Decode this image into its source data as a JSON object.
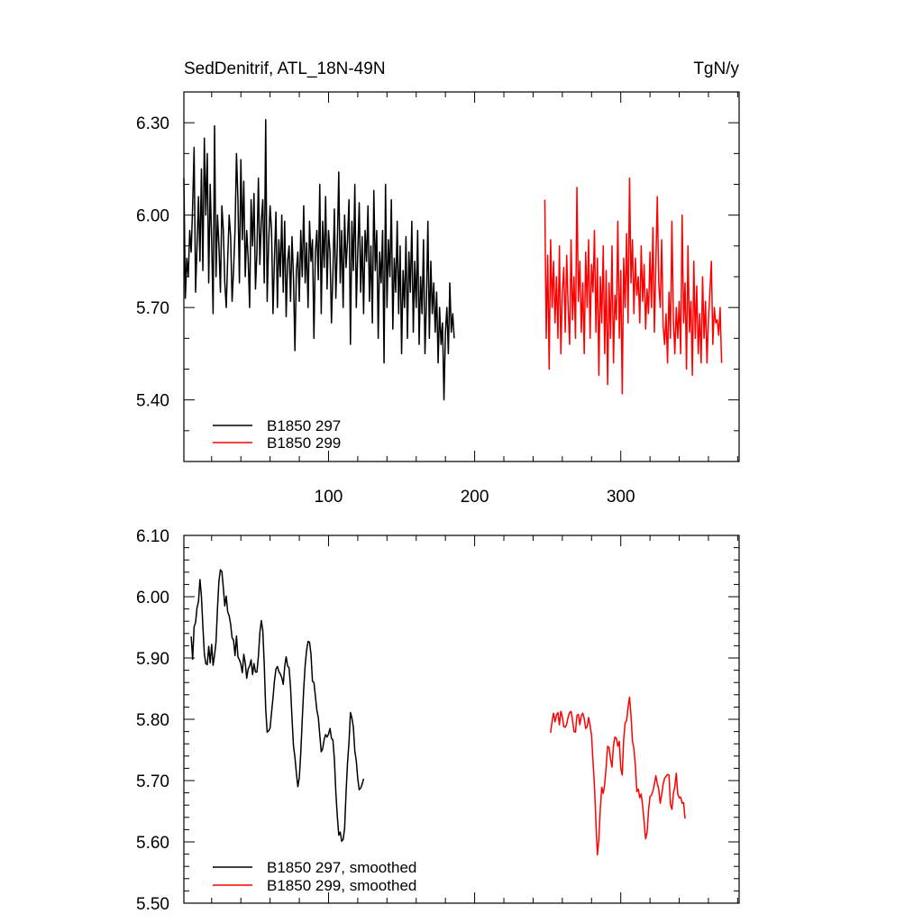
{
  "colors": {
    "run_297": "#000000",
    "run_299": "#ff0000",
    "axis": "#000000",
    "background": "#ffffff"
  },
  "chart_data": [
    {
      "type": "line",
      "title": "SedDenitrif, ATL_18N-49N",
      "units": "TgN/y",
      "xlabel": "",
      "ylabel": "",
      "xlim": [
        1,
        381
      ],
      "ylim": [
        5.2,
        6.4
      ],
      "yticks": [
        "6.30",
        "6.00",
        "5.70",
        "5.40"
      ],
      "xticks": [
        "100",
        "200",
        "300"
      ],
      "legend": [
        "B1850 297",
        "B1850 299"
      ],
      "legend_position": "bottom-left",
      "series": [
        {
          "name": "B1850 297",
          "color": "#000000",
          "x_start": 1,
          "values": [
            6.12,
            5.73,
            5.86,
            5.8,
            5.95,
            5.88,
            6.03,
            6.22,
            5.75,
            5.9,
            6.06,
            5.85,
            6.15,
            5.82,
            6.25,
            6.0,
            6.2,
            5.78,
            6.1,
            5.92,
            5.68,
            6.29,
            5.8,
            6.0,
            5.9,
            5.75,
            6.03,
            5.95,
            5.78,
            5.7,
            5.86,
            6.0,
            5.93,
            5.72,
            5.82,
            5.95,
            6.2,
            6.05,
            5.78,
            6.18,
            5.92,
            6.11,
            5.8,
            5.95,
            5.86,
            5.7,
            6.05,
            5.9,
            6.07,
            5.76,
            5.88,
            6.12,
            5.84,
            5.98,
            6.05,
            5.78,
            6.31,
            5.72,
            5.91,
            6.03,
            5.95,
            5.68,
            5.86,
            6.01,
            5.7,
            5.92,
            5.8,
            6.0,
            5.75,
            5.98,
            5.67,
            5.85,
            5.9,
            5.72,
            5.93,
            5.8,
            5.56,
            5.82,
            5.88,
            5.72,
            5.95,
            5.8,
            6.03,
            5.78,
            5.91,
            5.7,
            5.98,
            5.85,
            5.92,
            5.6,
            5.88,
            5.95,
            5.79,
            6.1,
            5.68,
            5.98,
            5.83,
            6.06,
            5.76,
            5.95,
            5.88,
            5.65,
            5.81,
            6.02,
            5.73,
            5.9,
            6.14,
            5.78,
            5.95,
            5.7,
            6.0,
            5.83,
            5.92,
            6.05,
            5.58,
            5.98,
            5.82,
            6.1,
            5.7,
            5.88,
            6.04,
            5.75,
            5.93,
            5.68,
            5.95,
            5.85,
            6.03,
            5.72,
            5.9,
            5.65,
            6.08,
            5.82,
            5.95,
            5.6,
            5.88,
            5.78,
            5.95,
            5.52,
            6.1,
            5.7,
            5.92,
            5.8,
            6.05,
            5.63,
            5.86,
            5.75,
            5.98,
            5.68,
            5.9,
            5.55,
            5.82,
            5.7,
            5.93,
            5.6,
            5.88,
            5.75,
            5.98,
            5.62,
            5.85,
            5.7,
            5.95,
            5.58,
            5.8,
            5.68,
            5.92,
            5.55,
            5.72,
            5.98,
            5.6,
            5.85,
            5.68,
            5.78,
            5.62,
            5.75,
            5.52,
            5.7,
            5.58,
            5.65,
            5.4,
            5.62,
            5.7,
            5.55,
            5.78,
            5.62,
            5.68,
            5.6
          ]
        },
        {
          "name": "B1850 299",
          "color": "#ff0000",
          "x_start": 248,
          "values": [
            6.05,
            5.6,
            5.87,
            5.5,
            5.92,
            5.7,
            5.85,
            5.65,
            5.8,
            5.6,
            5.9,
            5.55,
            5.75,
            5.83,
            5.62,
            5.87,
            5.7,
            5.58,
            5.92,
            5.66,
            5.8,
            5.6,
            6.09,
            5.72,
            5.85,
            5.62,
            5.78,
            5.55,
            5.88,
            5.7,
            5.92,
            5.6,
            5.84,
            5.75,
            5.95,
            5.62,
            5.86,
            5.48,
            5.8,
            5.65,
            5.9,
            5.55,
            5.82,
            5.45,
            5.78,
            5.6,
            5.9,
            5.52,
            5.74,
            5.66,
            5.98,
            5.6,
            5.82,
            5.42,
            5.86,
            5.7,
            5.94,
            5.65,
            6.12,
            5.78,
            5.92,
            5.68,
            5.86,
            5.74,
            5.8,
            5.65,
            5.9,
            5.72,
            5.84,
            5.63,
            5.76,
            5.68,
            5.88,
            5.7,
            5.96,
            5.62,
            5.84,
            6.06,
            5.78,
            5.7,
            5.92,
            5.64,
            5.58,
            5.68,
            5.52,
            5.75,
            5.6,
            5.98,
            5.66,
            5.55,
            5.7,
            5.6,
            5.72,
            5.55,
            6.0,
            5.65,
            5.78,
            5.5,
            5.9,
            5.62,
            5.72,
            5.48,
            5.85,
            5.6,
            5.77,
            5.55,
            5.68,
            5.52,
            5.8,
            5.6,
            5.72,
            5.52,
            5.66,
            5.75,
            5.85,
            5.58,
            5.7,
            5.65,
            5.66,
            5.61,
            5.7,
            5.52
          ]
        }
      ]
    },
    {
      "type": "line",
      "title": "",
      "xlabel": "",
      "ylabel": "",
      "xlim": [
        1,
        381
      ],
      "ylim": [
        5.5,
        6.1
      ],
      "yticks": [
        "6.10",
        "6.00",
        "5.90",
        "5.80",
        "5.70",
        "5.60",
        "5.50"
      ],
      "legend": [
        "B1850 297, smoothed",
        "B1850 299, smoothed"
      ],
      "legend_position": "bottom-left",
      "series": [
        {
          "name": "B1850 297, smoothed",
          "color": "#000000",
          "x_start": 6,
          "values": [
            5.935,
            5.898,
            5.951,
            5.958,
            5.982,
            5.992,
            6.028,
            6.001,
            5.952,
            5.907,
            5.891,
            5.889,
            5.919,
            5.892,
            5.922,
            5.888,
            5.905,
            5.926,
            5.981,
            6.026,
            6.044,
            6.041,
            6.015,
            5.985,
            6.001,
            5.975,
            5.969,
            5.955,
            5.933,
            5.929,
            5.904,
            5.936,
            5.902,
            5.897,
            5.89,
            5.876,
            5.906,
            5.892,
            5.867,
            5.882,
            5.887,
            5.897,
            5.873,
            5.891,
            5.877,
            5.877,
            5.903,
            5.941,
            5.961,
            5.945,
            5.89,
            5.817,
            5.779,
            5.781,
            5.786,
            5.811,
            5.835,
            5.863,
            5.882,
            5.886,
            5.878,
            5.874,
            5.868,
            5.857,
            5.886,
            5.902,
            5.887,
            5.884,
            5.852,
            5.802,
            5.757,
            5.738,
            5.712,
            5.69,
            5.705,
            5.745,
            5.799,
            5.849,
            5.888,
            5.913,
            5.927,
            5.926,
            5.906,
            5.862,
            5.86,
            5.838,
            5.815,
            5.803,
            5.775,
            5.747,
            5.752,
            5.767,
            5.775,
            5.771,
            5.776,
            5.785,
            5.769,
            5.766,
            5.735,
            5.681,
            5.642,
            5.611,
            5.616,
            5.601,
            5.604,
            5.622,
            5.681,
            5.729,
            5.762,
            5.811,
            5.802,
            5.787,
            5.748,
            5.732,
            5.703,
            5.685,
            5.688,
            5.694,
            5.703
          ]
        },
        {
          "name": "B1850 299, smoothed",
          "color": "#ff0000",
          "x_start": 252,
          "values": [
            5.778,
            5.797,
            5.81,
            5.796,
            5.807,
            5.811,
            5.791,
            5.813,
            5.804,
            5.788,
            5.787,
            5.792,
            5.804,
            5.811,
            5.813,
            5.798,
            5.78,
            5.779,
            5.806,
            5.808,
            5.791,
            5.806,
            5.81,
            5.801,
            5.785,
            5.788,
            5.803,
            5.79,
            5.774,
            5.731,
            5.691,
            5.632,
            5.579,
            5.604,
            5.655,
            5.689,
            5.679,
            5.694,
            5.722,
            5.756,
            5.754,
            5.735,
            5.722,
            5.757,
            5.771,
            5.769,
            5.756,
            5.764,
            5.72,
            5.709,
            5.768,
            5.794,
            5.798,
            5.82,
            5.836,
            5.807,
            5.764,
            5.752,
            5.724,
            5.682,
            5.686,
            5.672,
            5.678,
            5.658,
            5.632,
            5.605,
            5.615,
            5.651,
            5.674,
            5.676,
            5.683,
            5.694,
            5.708,
            5.695,
            5.686,
            5.663,
            5.677,
            5.694,
            5.704,
            5.707,
            5.71,
            5.709,
            5.661,
            5.653,
            5.679,
            5.69,
            5.712,
            5.678,
            5.672,
            5.673,
            5.663,
            5.664,
            5.638
          ]
        }
      ]
    }
  ]
}
